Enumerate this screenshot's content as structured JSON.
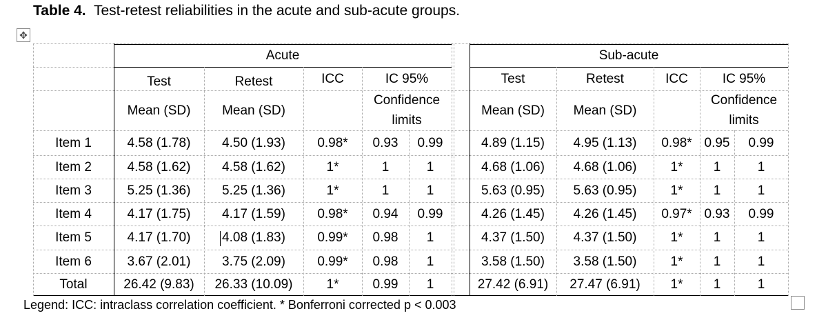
{
  "caption": {
    "label": "Table 4.",
    "text": "Test-retest reliabilities in the acute and sub-acute groups."
  },
  "icons": {
    "move": "move-handle-icon",
    "resize": "resize-handle-icon"
  },
  "groups": [
    "Acute",
    "Sub-acute"
  ],
  "header_row1": [
    "Test",
    "Retest",
    "ICC",
    "IC 95%",
    "Test",
    "Retest",
    "ICC",
    "IC 95%"
  ],
  "header_row2": [
    "Mean (SD)",
    "Mean (SD)",
    "Confidence limits",
    "Mean (SD)",
    "Mean (SD)",
    "Confidence limits"
  ],
  "rows": [
    {
      "label": "Item 1",
      "cells": [
        "4.58 (1.78)",
        "4.50 (1.93)",
        "0.98*",
        "0.93",
        "0.99",
        "4.89 (1.15)",
        "4.95 (1.13)",
        "0.98*",
        "0.95",
        "0.99"
      ]
    },
    {
      "label": "Item 2",
      "cells": [
        "4.58 (1.62)",
        "4.58 (1.62)",
        "1*",
        "1",
        "1",
        "4.68 (1.06)",
        "4.68 (1.06)",
        "1*",
        "1",
        "1"
      ]
    },
    {
      "label": "Item 3",
      "cells": [
        "5.25 (1.36)",
        "5.25 (1.36)",
        "1*",
        "1",
        "1",
        "5.63 (0.95)",
        "5.63 (0.95)",
        "1*",
        "1",
        "1"
      ]
    },
    {
      "label": "Item 4",
      "cells": [
        "4.17 (1.75)",
        "4.17 (1.59)",
        "0.98*",
        "0.94",
        "0.99",
        "4.26 (1.45)",
        "4.26 (1.45)",
        "0.97*",
        "0.93",
        "0.99"
      ]
    },
    {
      "label": "Item 5",
      "cells": [
        "4.17 (1.70)",
        "4.08 (1.83)",
        "0.99*",
        "0.98",
        "1",
        "4.37 (1.50)",
        "4.37 (1.50)",
        "1*",
        "1",
        "1"
      ]
    },
    {
      "label": "Item 6",
      "cells": [
        "3.67 (2.01)",
        "3.75 (2.09)",
        "0.99*",
        "0.98",
        "1",
        "3.58 (1.50)",
        "3.58 (1.50)",
        "1*",
        "1",
        "1"
      ]
    },
    {
      "label": "Total",
      "cells": [
        "26.42 (9.83)",
        "26.33 (10.09)",
        "1*",
        "0.99",
        "1",
        "27.42 (6.91)",
        "27.47 (6.91)",
        "1*",
        "1",
        "1"
      ]
    }
  ],
  "legend": "Legend:  ICC: intraclass correlation coefficient. * Bonferroni corrected p < 0.003"
}
